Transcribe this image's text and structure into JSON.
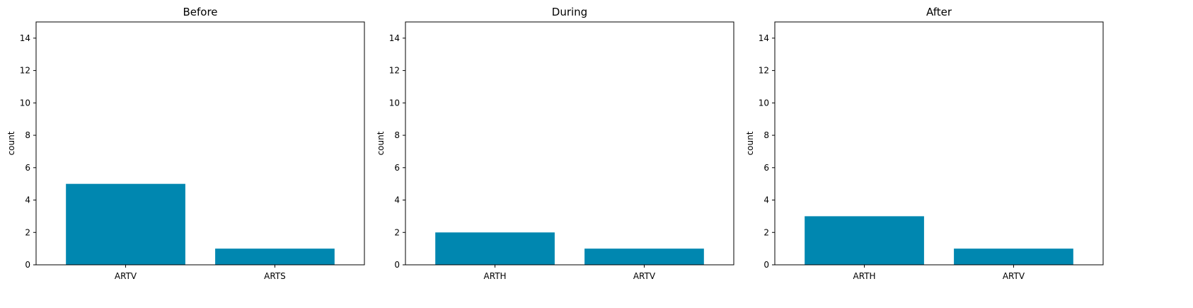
{
  "bar_color": "#0087b0",
  "chart_data": [
    {
      "type": "bar",
      "title": "Before",
      "ylabel": "count",
      "ylim": [
        0,
        15
      ],
      "yticks": [
        0,
        2,
        4,
        6,
        8,
        10,
        12,
        14
      ],
      "categories": [
        "ARTV",
        "ARTS"
      ],
      "values": [
        5,
        1
      ],
      "grid": false
    },
    {
      "type": "bar",
      "title": "During",
      "ylabel": "count",
      "ylim": [
        0,
        15
      ],
      "yticks": [
        0,
        2,
        4,
        6,
        8,
        10,
        12,
        14
      ],
      "categories": [
        "ARTH",
        "ARTV"
      ],
      "values": [
        2,
        1
      ],
      "grid": false
    },
    {
      "type": "bar",
      "title": "After",
      "ylabel": "count",
      "ylim": [
        0,
        15
      ],
      "yticks": [
        0,
        2,
        4,
        6,
        8,
        10,
        12,
        14
      ],
      "categories": [
        "ARTH",
        "ARTV"
      ],
      "values": [
        3,
        1
      ],
      "grid": false
    }
  ]
}
